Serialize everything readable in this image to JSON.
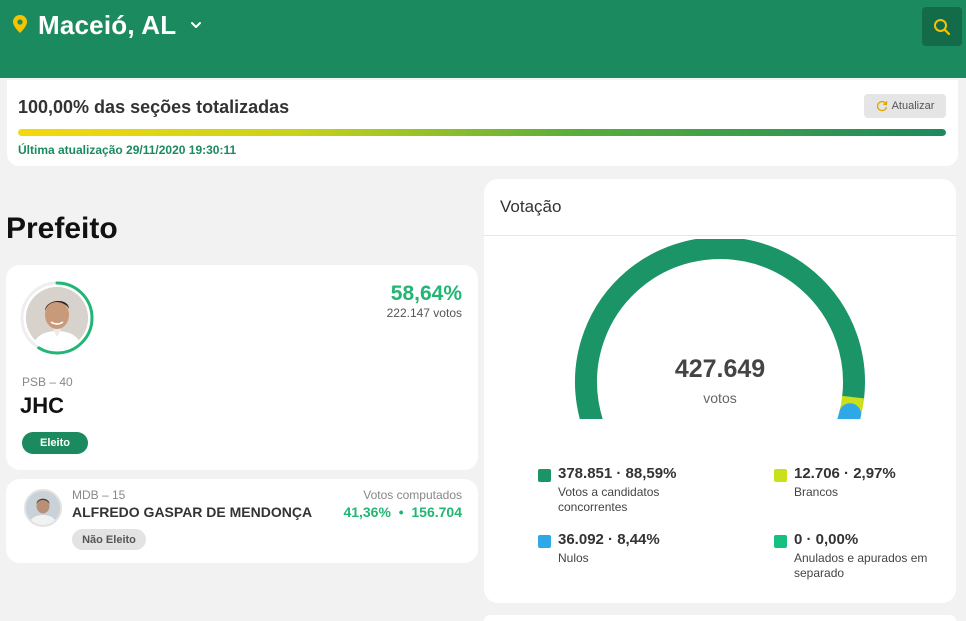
{
  "header": {
    "location": "Maceió, AL",
    "pin_icon": "map-pin-icon",
    "chevron_icon": "chevron-down-icon",
    "search_icon": "search-icon",
    "brand_color": "#1b8a5f",
    "accent_color": "#f5c400"
  },
  "status": {
    "title": "100,00% das seções totalizadas",
    "progress_percent": 100,
    "refresh_label": "Atualizar",
    "refresh_icon": "refresh-icon",
    "last_update": "Última atualização 29/11/2020 19:30:11"
  },
  "office": {
    "title": "Prefeito"
  },
  "candidates": [
    {
      "percent": "58,64%",
      "votes": "222.147 votos",
      "party": "PSB – 40",
      "name": "JHC",
      "status": "Eleito",
      "ring_fraction": 0.5864
    },
    {
      "party": "MDB – 15",
      "name": "ALFREDO GASPAR DE MENDONÇA",
      "status": "Não Eleito",
      "votes_label": "Votos computados",
      "votes_value": "41,36%  •  156.704"
    }
  ],
  "votacao": {
    "title": "Votação",
    "total": "427.649",
    "unit": "votos",
    "segments": [
      {
        "name": "candidates",
        "fraction": 0.8859,
        "color": "#1b9467"
      },
      {
        "name": "brancos",
        "fraction": 0.0297,
        "color": "#c9e01a"
      },
      {
        "name": "nulos",
        "fraction": 0.0844,
        "color": "#2ea8e6"
      }
    ],
    "legend": [
      {
        "value": "378.851 · 88,59%",
        "label": "Votos a candidatos concorrentes",
        "color": "#1b9467"
      },
      {
        "value": "12.706 · 2,97%",
        "label": "Brancos",
        "color": "#c9e01a"
      },
      {
        "value": "36.092 · 8,44%",
        "label": "Nulos",
        "color": "#2ea8e6"
      },
      {
        "value": "0 · 0,00%",
        "label": "Anulados e apurados em separado",
        "color": "#16c07e"
      }
    ]
  }
}
